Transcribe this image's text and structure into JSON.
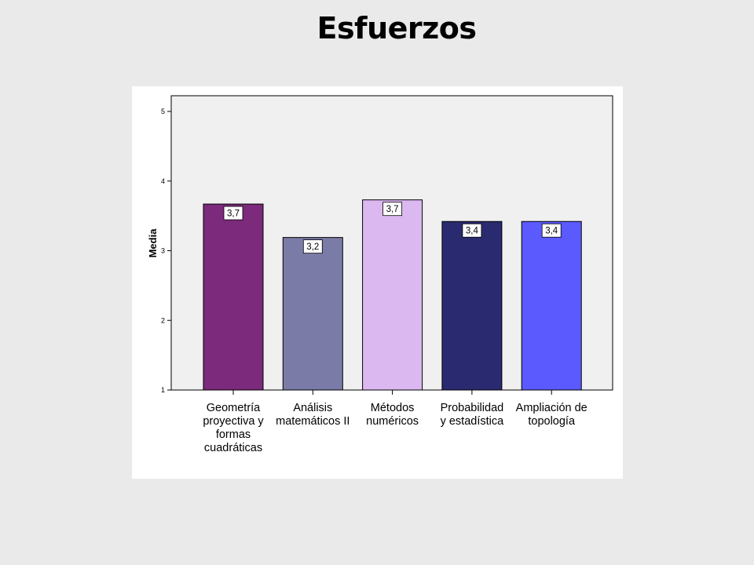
{
  "slide": {
    "title": "Esfuerzos"
  },
  "chart_data": {
    "type": "bar",
    "categories": [
      [
        "Geometría",
        "proyectiva y",
        "formas",
        "cuadráticas"
      ],
      [
        "Análisis",
        "matemáticos II"
      ],
      [
        "Métodos",
        "numéricos"
      ],
      [
        "Probabilidad",
        "y estadística"
      ],
      [
        "Ampliación de",
        "topología"
      ]
    ],
    "values": [
      3.67,
      3.19,
      3.73,
      3.42,
      3.42
    ],
    "data_labels": [
      "3,7",
      "3,2",
      "3,7",
      "3,4",
      "3,4"
    ],
    "colors": [
      "#7b2a7c",
      "#7b7ba8",
      "#dcb8f0",
      "#2a2a70",
      "#5a5aff"
    ],
    "ylabel": "Media",
    "ylim": [
      1,
      5
    ],
    "yticks": [
      "1",
      "2",
      "3",
      "4",
      "5"
    ],
    "grid": false,
    "plot_background": "#f0f0f0"
  }
}
